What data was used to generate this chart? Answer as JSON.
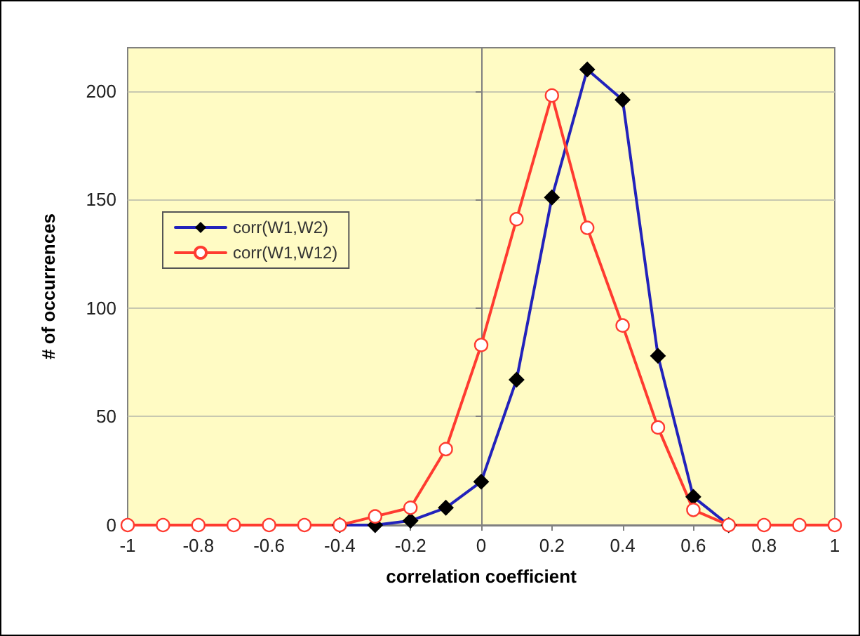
{
  "chart_data": {
    "type": "line",
    "xlabel": "correlation coefficient",
    "ylabel": "# of occurrences",
    "x": [
      -1,
      -0.9,
      -0.8,
      -0.7,
      -0.6,
      -0.5,
      -0.4,
      -0.3,
      -0.2,
      -0.1,
      0,
      0.1,
      0.2,
      0.3,
      0.4,
      0.5,
      0.6,
      0.7,
      0.8,
      0.9,
      1
    ],
    "series": [
      {
        "name": "corr(W1,W2)",
        "color": "#2222bb",
        "marker": "diamond",
        "values": [
          null,
          null,
          null,
          null,
          null,
          null,
          0,
          0,
          2,
          8,
          20,
          67,
          151,
          210,
          196,
          78,
          13,
          0,
          null,
          null,
          null
        ]
      },
      {
        "name": "corr(W1,W12)",
        "color": "#ff3b30",
        "marker": "circle",
        "values": [
          0,
          0,
          0,
          0,
          0,
          0,
          0,
          4,
          8,
          35,
          83,
          141,
          198,
          137,
          92,
          45,
          7,
          0,
          0,
          0,
          0
        ]
      }
    ],
    "xlim": [
      -1,
      1
    ],
    "xticks": [
      -1,
      -0.8,
      -0.6,
      -0.4,
      -0.2,
      0,
      0.2,
      0.4,
      0.6,
      0.8,
      1
    ],
    "ylim": [
      0,
      220
    ],
    "yticks": [
      0,
      50,
      100,
      150,
      200
    ],
    "grid": "y",
    "legend": "left",
    "line_style": "solid"
  }
}
